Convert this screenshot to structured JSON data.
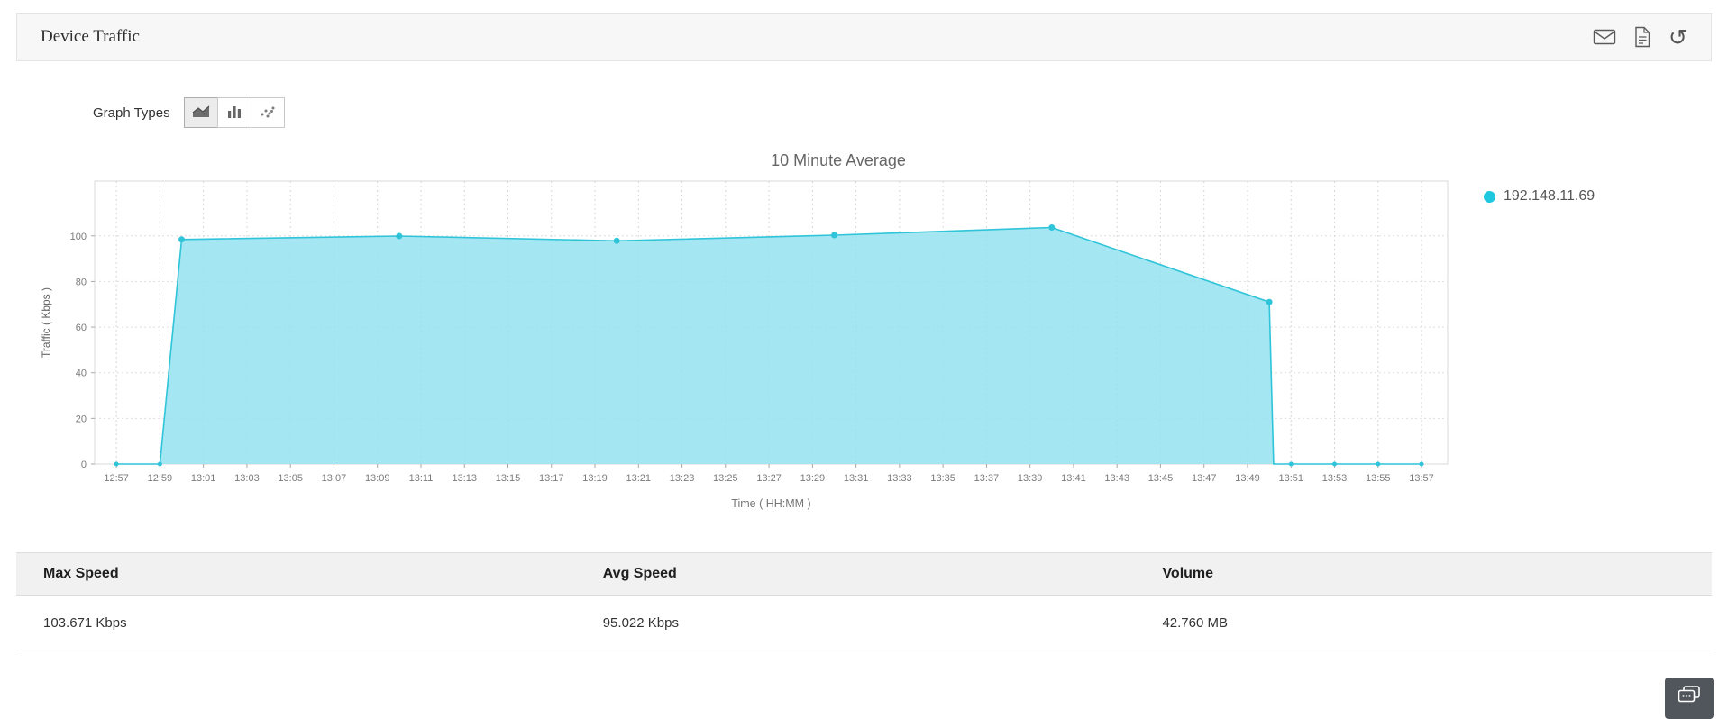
{
  "header": {
    "title": "Device Traffic",
    "icons": [
      {
        "name": "mail-icon"
      },
      {
        "name": "pdf-export-icon"
      },
      {
        "name": "refresh-icon"
      }
    ]
  },
  "graph_types": {
    "label": "Graph Types",
    "options": [
      {
        "name": "area-graph",
        "selected": true
      },
      {
        "name": "bar-graph",
        "selected": false
      },
      {
        "name": "scatter-graph",
        "selected": false
      }
    ]
  },
  "chart_data": {
    "type": "area",
    "title": "10 Minute Average",
    "xlabel": "Time ( HH:MM )",
    "ylabel": "Traffic ( Kbps )",
    "ylim": [
      0,
      124
    ],
    "y_ticks": [
      0,
      20,
      40,
      60,
      80,
      100
    ],
    "x_range_minutes": [
      -1,
      61.2
    ],
    "x_tick_labels": [
      "12:57",
      "12:59",
      "13:01",
      "13:03",
      "13:05",
      "13:07",
      "13:09",
      "13:11",
      "13:13",
      "13:15",
      "13:17",
      "13:19",
      "13:21",
      "13:23",
      "13:25",
      "13:27",
      "13:29",
      "13:31",
      "13:33",
      "13:35",
      "13:37",
      "13:39",
      "13:41",
      "13:43",
      "13:45",
      "13:47",
      "13:49",
      "13:51",
      "13:53",
      "13:55",
      "13:57"
    ],
    "grid": true,
    "legend_position": "right",
    "series": [
      {
        "name": "192.148.11.69",
        "color": "#2fc4d9",
        "fill": "#97e2ef",
        "points": [
          {
            "x": 0,
            "y": 0,
            "marker": true
          },
          {
            "x": 2,
            "y": 0,
            "marker": true
          },
          {
            "x": 3,
            "y": 98.4,
            "marker": true
          },
          {
            "x": 13,
            "y": 99.9,
            "marker": true
          },
          {
            "x": 23,
            "y": 97.8,
            "marker": true
          },
          {
            "x": 33,
            "y": 100.3,
            "marker": true
          },
          {
            "x": 43,
            "y": 103.671,
            "marker": true
          },
          {
            "x": 53,
            "y": 71.0,
            "marker": true
          },
          {
            "x": 53.2,
            "y": 0,
            "marker": false
          },
          {
            "x": 54,
            "y": 0,
            "marker": true
          },
          {
            "x": 56,
            "y": 0,
            "marker": true
          },
          {
            "x": 58,
            "y": 0,
            "marker": true
          },
          {
            "x": 60,
            "y": 0,
            "marker": true
          }
        ]
      }
    ],
    "legend": [
      {
        "label": "192.148.11.69",
        "color": "#1fc8de"
      }
    ]
  },
  "table": {
    "headers": [
      "Max Speed",
      "Avg Speed",
      "Volume"
    ],
    "rows": [
      [
        "103.671 Kbps",
        "95.022 Kbps",
        "42.760 MB"
      ]
    ]
  }
}
